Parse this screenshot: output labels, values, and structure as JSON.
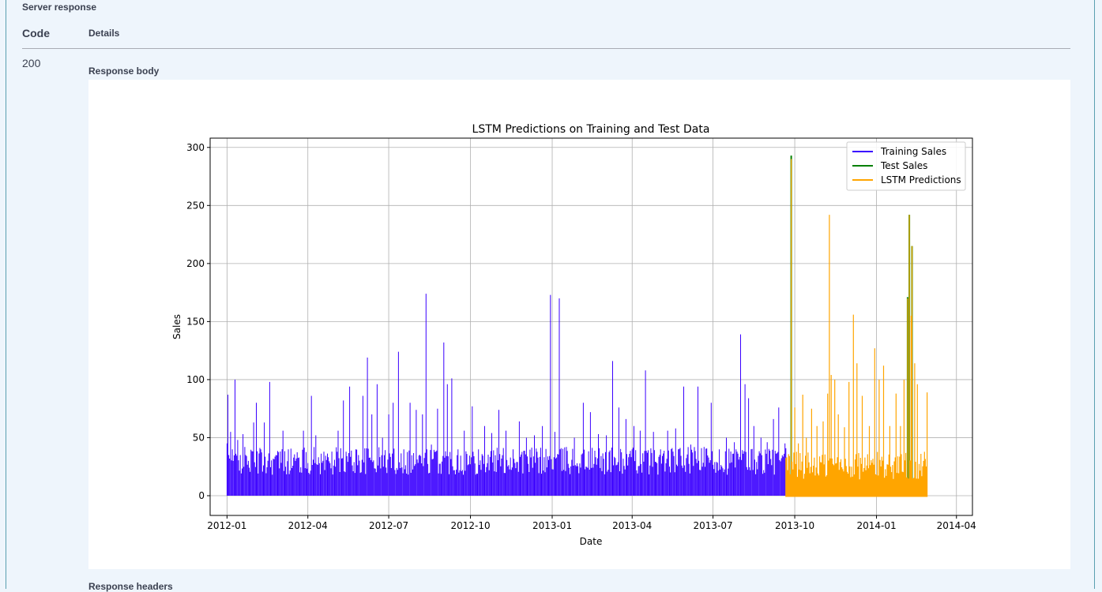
{
  "server_response": {
    "title": "Server response",
    "code_header": "Code",
    "details_header": "Details",
    "code": "200",
    "response_body_label": "Response body",
    "response_headers_label": "Response headers"
  },
  "chart_data": {
    "type": "line",
    "title": "LSTM Predictions on Training and Test Data",
    "xlabel": "Date",
    "ylabel": "Sales",
    "ylim": [
      -17,
      308
    ],
    "xlim": [
      "2011-12-13",
      "2014-04-19"
    ],
    "yticks": [
      0,
      50,
      100,
      150,
      200,
      250,
      300
    ],
    "xticks": [
      "2012-01",
      "2012-04",
      "2012-07",
      "2012-10",
      "2013-01",
      "2013-04",
      "2013-07",
      "2013-10",
      "2014-01",
      "2014-04"
    ],
    "grid": true,
    "legend_position": "top-right",
    "series": [
      {
        "name": "Training Sales",
        "color": "#3a00ff",
        "x": [
          "2012-01-01",
          "2013-09-21"
        ],
        "points": [
          [
            "2012-01-01",
            45
          ],
          [
            "2012-01-02",
            87
          ],
          [
            "2012-01-03",
            35
          ],
          [
            "2012-01-05",
            55
          ],
          [
            "2012-01-08",
            30
          ],
          [
            "2012-01-10",
            100
          ],
          [
            "2012-01-13",
            48
          ],
          [
            "2012-01-16",
            35
          ],
          [
            "2012-01-19",
            53
          ],
          [
            "2012-01-25",
            30
          ],
          [
            "2012-01-31",
            63
          ],
          [
            "2012-02-03",
            80
          ],
          [
            "2012-02-08",
            40
          ],
          [
            "2012-02-12",
            63
          ],
          [
            "2012-02-18",
            98
          ],
          [
            "2012-02-25",
            35
          ],
          [
            "2012-03-04",
            56
          ],
          [
            "2012-03-10",
            40
          ],
          [
            "2012-03-18",
            30
          ],
          [
            "2012-03-27",
            56
          ],
          [
            "2012-04-05",
            86
          ],
          [
            "2012-04-10",
            52
          ],
          [
            "2012-04-18",
            30
          ],
          [
            "2012-04-28",
            38
          ],
          [
            "2012-05-05",
            56
          ],
          [
            "2012-05-11",
            82
          ],
          [
            "2012-05-18",
            94
          ],
          [
            "2012-05-25",
            40
          ],
          [
            "2012-06-02",
            86
          ],
          [
            "2012-06-07",
            119
          ],
          [
            "2012-06-12",
            70
          ],
          [
            "2012-06-18",
            96
          ],
          [
            "2012-06-24",
            50
          ],
          [
            "2012-07-01",
            70
          ],
          [
            "2012-07-06",
            80
          ],
          [
            "2012-07-12",
            124
          ],
          [
            "2012-07-18",
            40
          ],
          [
            "2012-07-25",
            80
          ],
          [
            "2012-08-01",
            74
          ],
          [
            "2012-08-08",
            70
          ],
          [
            "2012-08-12",
            174
          ],
          [
            "2012-08-18",
            44
          ],
          [
            "2012-08-25",
            75
          ],
          [
            "2012-09-01",
            132
          ],
          [
            "2012-09-05",
            96
          ],
          [
            "2012-09-10",
            101
          ],
          [
            "2012-09-17",
            40
          ],
          [
            "2012-09-24",
            56
          ],
          [
            "2012-10-03",
            77
          ],
          [
            "2012-10-10",
            40
          ],
          [
            "2012-10-17",
            60
          ],
          [
            "2012-10-25",
            54
          ],
          [
            "2012-11-02",
            74
          ],
          [
            "2012-11-10",
            56
          ],
          [
            "2012-11-18",
            40
          ],
          [
            "2012-11-25",
            64
          ],
          [
            "2012-12-03",
            50
          ],
          [
            "2012-12-12",
            52
          ],
          [
            "2012-12-21",
            60
          ],
          [
            "2012-12-30",
            173
          ],
          [
            "2013-01-04",
            55
          ],
          [
            "2013-01-09",
            170
          ],
          [
            "2013-01-17",
            42
          ],
          [
            "2013-01-26",
            50
          ],
          [
            "2013-02-05",
            80
          ],
          [
            "2013-02-13",
            72
          ],
          [
            "2013-02-22",
            53
          ],
          [
            "2013-03-03",
            52
          ],
          [
            "2013-03-10",
            116
          ],
          [
            "2013-03-17",
            76
          ],
          [
            "2013-03-25",
            66
          ],
          [
            "2013-04-03",
            60
          ],
          [
            "2013-04-10",
            56
          ],
          [
            "2013-04-16",
            108
          ],
          [
            "2013-04-25",
            55
          ],
          [
            "2013-05-03",
            40
          ],
          [
            "2013-05-11",
            56
          ],
          [
            "2013-05-20",
            58
          ],
          [
            "2013-05-29",
            94
          ],
          [
            "2013-06-06",
            44
          ],
          [
            "2013-06-14",
            94
          ],
          [
            "2013-06-21",
            42
          ],
          [
            "2013-06-29",
            80
          ],
          [
            "2013-07-08",
            40
          ],
          [
            "2013-07-16",
            50
          ],
          [
            "2013-07-25",
            46
          ],
          [
            "2013-08-01",
            139
          ],
          [
            "2013-08-06",
            96
          ],
          [
            "2013-08-10",
            84
          ],
          [
            "2013-08-16",
            60
          ],
          [
            "2013-08-24",
            50
          ],
          [
            "2013-08-31",
            46
          ],
          [
            "2013-09-07",
            66
          ],
          [
            "2013-09-13",
            76
          ],
          [
            "2013-09-20",
            45
          ]
        ]
      },
      {
        "name": "Test Sales",
        "color": "#008000",
        "x": [
          "2013-09-21",
          "2014-02-27"
        ],
        "points": [
          [
            "2013-09-27",
            293
          ],
          [
            "2014-02-05",
            171
          ],
          [
            "2014-02-07",
            242
          ],
          [
            "2014-02-10",
            215
          ]
        ]
      },
      {
        "name": "LSTM Predictions",
        "color": "#ffa500",
        "x": [
          "2013-09-21",
          "2014-02-27"
        ],
        "points": [
          [
            "2013-09-23",
            22
          ],
          [
            "2013-09-27",
            290
          ],
          [
            "2013-10-01",
            76
          ],
          [
            "2013-10-05",
            45
          ],
          [
            "2013-10-10",
            87
          ],
          [
            "2013-10-14",
            50
          ],
          [
            "2013-10-20",
            75
          ],
          [
            "2013-10-26",
            60
          ],
          [
            "2013-11-02",
            64
          ],
          [
            "2013-11-07",
            88
          ],
          [
            "2013-11-09",
            242
          ],
          [
            "2013-11-11",
            104
          ],
          [
            "2013-11-15",
            100
          ],
          [
            "2013-11-19",
            70
          ],
          [
            "2013-11-26",
            59
          ],
          [
            "2013-12-01",
            98
          ],
          [
            "2013-12-06",
            156
          ],
          [
            "2013-12-10",
            114
          ],
          [
            "2013-12-16",
            86
          ],
          [
            "2013-12-24",
            60
          ],
          [
            "2013-12-30",
            127
          ],
          [
            "2014-01-04",
            100
          ],
          [
            "2014-01-09",
            112
          ],
          [
            "2014-01-16",
            60
          ],
          [
            "2014-01-23",
            88
          ],
          [
            "2014-01-28",
            60
          ],
          [
            "2014-02-01",
            100
          ],
          [
            "2014-02-05",
            170
          ],
          [
            "2014-02-07",
            242
          ],
          [
            "2014-02-09",
            155
          ],
          [
            "2014-02-10",
            215
          ],
          [
            "2014-02-13",
            114
          ],
          [
            "2014-02-16",
            96
          ],
          [
            "2014-02-20",
            36
          ],
          [
            "2014-02-23",
            30
          ],
          [
            "2014-02-27",
            89
          ]
        ]
      }
    ]
  }
}
